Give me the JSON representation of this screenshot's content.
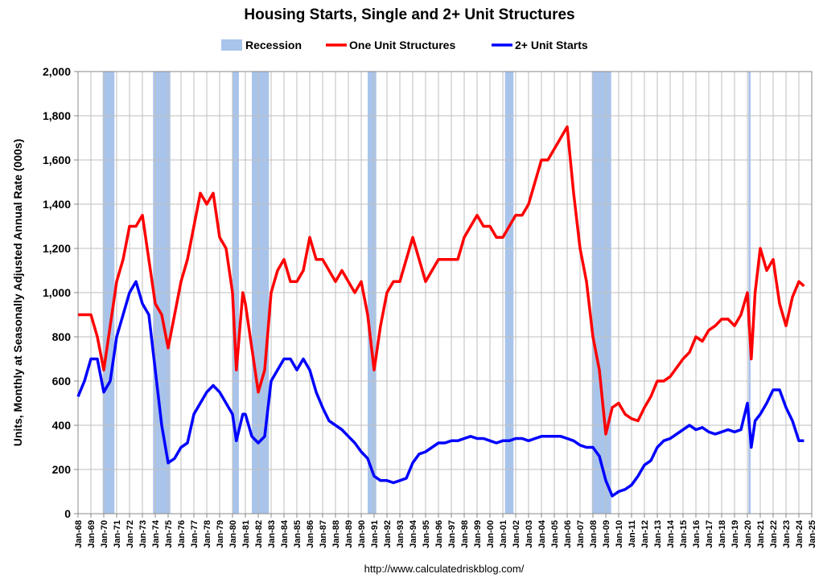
{
  "chart_data": {
    "type": "line",
    "title": "Housing Starts, Single and 2+ Unit Structures",
    "y_label": "Units, Monthly at Seasonally Adjusted Annual Rate (000s)",
    "source": "http://www.calculatedriskblog.com/",
    "legend": "top",
    "grid": true,
    "x": [
      1968,
      1968.5,
      1969,
      1969.5,
      1970,
      1970.5,
      1971,
      1971.5,
      1972,
      1972.5,
      1973,
      1973.5,
      1974,
      1974.5,
      1975,
      1975.5,
      1976,
      1976.5,
      1977,
      1977.5,
      1978,
      1978.5,
      1979,
      1979.5,
      1980,
      1980.3,
      1980.8,
      1981,
      1981.5,
      1982,
      1982.5,
      1983,
      1983.5,
      1984,
      1984.5,
      1985,
      1985.5,
      1986,
      1986.5,
      1987,
      1987.5,
      1988,
      1988.5,
      1989,
      1989.5,
      1990,
      1990.5,
      1991,
      1991.5,
      1992,
      1992.5,
      1993,
      1993.5,
      1994,
      1994.5,
      1995,
      1995.5,
      1996,
      1996.5,
      1997,
      1997.5,
      1998,
      1998.5,
      1999,
      1999.5,
      2000,
      2000.5,
      2001,
      2001.5,
      2002,
      2002.5,
      2003,
      2003.5,
      2004,
      2004.5,
      2005,
      2005.5,
      2006,
      2006.5,
      2007,
      2007.5,
      2008,
      2008.5,
      2009,
      2009.5,
      2010,
      2010.5,
      2011,
      2011.5,
      2012,
      2012.5,
      2013,
      2013.5,
      2014,
      2014.5,
      2015,
      2015.5,
      2016,
      2016.5,
      2017,
      2017.5,
      2018,
      2018.5,
      2019,
      2019.5,
      2020,
      2020.3,
      2020.6,
      2021,
      2021.5,
      2022,
      2022.5,
      2023,
      2023.5,
      2024,
      2024.4
    ],
    "series": [
      {
        "name": "One Unit Structures",
        "color": "#ff0000",
        "values": [
          900,
          900,
          900,
          800,
          650,
          850,
          1050,
          1150,
          1300,
          1300,
          1350,
          1150,
          950,
          900,
          750,
          900,
          1050,
          1150,
          1300,
          1450,
          1400,
          1450,
          1250,
          1200,
          1000,
          650,
          1000,
          950,
          750,
          550,
          650,
          1000,
          1100,
          1150,
          1050,
          1050,
          1100,
          1250,
          1150,
          1150,
          1100,
          1050,
          1100,
          1050,
          1000,
          1050,
          900,
          650,
          850,
          1000,
          1050,
          1050,
          1150,
          1250,
          1150,
          1050,
          1100,
          1150,
          1150,
          1150,
          1150,
          1250,
          1300,
          1350,
          1300,
          1300,
          1250,
          1250,
          1300,
          1350,
          1350,
          1400,
          1500,
          1600,
          1600,
          1650,
          1700,
          1750,
          1450,
          1200,
          1050,
          800,
          650,
          360,
          480,
          500,
          450,
          430,
          420,
          480,
          530,
          600,
          600,
          620,
          660,
          700,
          730,
          800,
          780,
          830,
          850,
          880,
          880,
          850,
          900,
          1000,
          700,
          1000,
          1200,
          1100,
          1150,
          950,
          850,
          980,
          1050,
          1030
        ]
      },
      {
        "name": "2+ Unit Starts",
        "color": "#0000ff",
        "values": [
          530,
          600,
          700,
          700,
          550,
          600,
          800,
          900,
          1000,
          1050,
          950,
          900,
          650,
          400,
          230,
          250,
          300,
          320,
          450,
          500,
          550,
          580,
          550,
          500,
          450,
          330,
          450,
          450,
          350,
          320,
          350,
          600,
          650,
          700,
          700,
          650,
          700,
          650,
          550,
          480,
          420,
          400,
          380,
          350,
          320,
          280,
          250,
          170,
          150,
          150,
          140,
          150,
          160,
          230,
          270,
          280,
          300,
          320,
          320,
          330,
          330,
          340,
          350,
          340,
          340,
          330,
          320,
          330,
          330,
          340,
          340,
          330,
          340,
          350,
          350,
          350,
          350,
          340,
          330,
          310,
          300,
          300,
          260,
          150,
          80,
          100,
          110,
          130,
          170,
          220,
          240,
          300,
          330,
          340,
          360,
          380,
          400,
          380,
          390,
          370,
          360,
          370,
          380,
          370,
          380,
          500,
          300,
          420,
          450,
          500,
          560,
          560,
          480,
          420,
          330,
          330
        ]
      }
    ],
    "recession": {
      "name": "Recession",
      "color": "#a9c4eb",
      "ranges": [
        [
          1969.92,
          1970.83
        ],
        [
          1973.83,
          1975.17
        ],
        [
          1980,
          1980.5
        ],
        [
          1981.5,
          1982.83
        ],
        [
          1990.5,
          1991.17
        ],
        [
          2001.17,
          2001.83
        ],
        [
          2007.92,
          2009.42
        ],
        [
          2020.08,
          2020.25
        ]
      ]
    },
    "xlim": [
      1968,
      2025
    ],
    "xticks": [
      {
        "value": 1968,
        "label": "Jan-68"
      },
      {
        "value": 1969,
        "label": "Jan-69"
      },
      {
        "value": 1970,
        "label": "Jan-70"
      },
      {
        "value": 1971,
        "label": "Jan-71"
      },
      {
        "value": 1972,
        "label": "Jan-72"
      },
      {
        "value": 1973,
        "label": "Jan-73"
      },
      {
        "value": 1974,
        "label": "Jan-74"
      },
      {
        "value": 1975,
        "label": "Jan-75"
      },
      {
        "value": 1976,
        "label": "Jan-76"
      },
      {
        "value": 1977,
        "label": "Jan-77"
      },
      {
        "value": 1978,
        "label": "Jan-78"
      },
      {
        "value": 1979,
        "label": "Jan-79"
      },
      {
        "value": 1980,
        "label": "Jan-80"
      },
      {
        "value": 1981,
        "label": "Jan-81"
      },
      {
        "value": 1982,
        "label": "Jan-82"
      },
      {
        "value": 1983,
        "label": "Jan-83"
      },
      {
        "value": 1984,
        "label": "Jan-84"
      },
      {
        "value": 1985,
        "label": "Jan-85"
      },
      {
        "value": 1986,
        "label": "Jan-86"
      },
      {
        "value": 1987,
        "label": "Jan-87"
      },
      {
        "value": 1988,
        "label": "Jan-88"
      },
      {
        "value": 1989,
        "label": "Jan-89"
      },
      {
        "value": 1990,
        "label": "Jan-90"
      },
      {
        "value": 1991,
        "label": "Jan-91"
      },
      {
        "value": 1992,
        "label": "Jan-92"
      },
      {
        "value": 1993,
        "label": "Jan-93"
      },
      {
        "value": 1994,
        "label": "Jan-94"
      },
      {
        "value": 1995,
        "label": "Jan-95"
      },
      {
        "value": 1996,
        "label": "Jan-96"
      },
      {
        "value": 1997,
        "label": "Jan-97"
      },
      {
        "value": 1998,
        "label": "Jan-98"
      },
      {
        "value": 1999,
        "label": "Jan-99"
      },
      {
        "value": 2000,
        "label": "Jan-00"
      },
      {
        "value": 2001,
        "label": "Jan-01"
      },
      {
        "value": 2002,
        "label": "Jan-02"
      },
      {
        "value": 2003,
        "label": "Jan-03"
      },
      {
        "value": 2004,
        "label": "Jan-04"
      },
      {
        "value": 2005,
        "label": "Jan-05"
      },
      {
        "value": 2006,
        "label": "Jan-06"
      },
      {
        "value": 2007,
        "label": "Jan-07"
      },
      {
        "value": 2008,
        "label": "Jan-08"
      },
      {
        "value": 2009,
        "label": "Jan-09"
      },
      {
        "value": 2010,
        "label": "Jan-10"
      },
      {
        "value": 2011,
        "label": "Jan-11"
      },
      {
        "value": 2012,
        "label": "Jan-12"
      },
      {
        "value": 2013,
        "label": "Jan-13"
      },
      {
        "value": 2014,
        "label": "Jan-14"
      },
      {
        "value": 2015,
        "label": "Jan-15"
      },
      {
        "value": 2016,
        "label": "Jan-16"
      },
      {
        "value": 2017,
        "label": "Jan-17"
      },
      {
        "value": 2018,
        "label": "Jan-18"
      },
      {
        "value": 2019,
        "label": "Jan-19"
      },
      {
        "value": 2020,
        "label": "Jan-20"
      },
      {
        "value": 2021,
        "label": "Jan-21"
      },
      {
        "value": 2022,
        "label": "Jan-22"
      },
      {
        "value": 2023,
        "label": "Jan-23"
      },
      {
        "value": 2024,
        "label": "Jan-24"
      },
      {
        "value": 2025,
        "label": "Jan-25"
      }
    ],
    "ylim": [
      0,
      2000
    ],
    "yticks": [
      0,
      200,
      400,
      600,
      800,
      {
        "value": 1000,
        "label": "1,000"
      },
      {
        "value": 1200,
        "label": "1,200"
      },
      {
        "value": 1400,
        "label": "1,400"
      },
      {
        "value": 1600,
        "label": "1,600"
      },
      {
        "value": 1800,
        "label": "1,800"
      },
      {
        "value": 2000,
        "label": "2,000"
      }
    ]
  }
}
